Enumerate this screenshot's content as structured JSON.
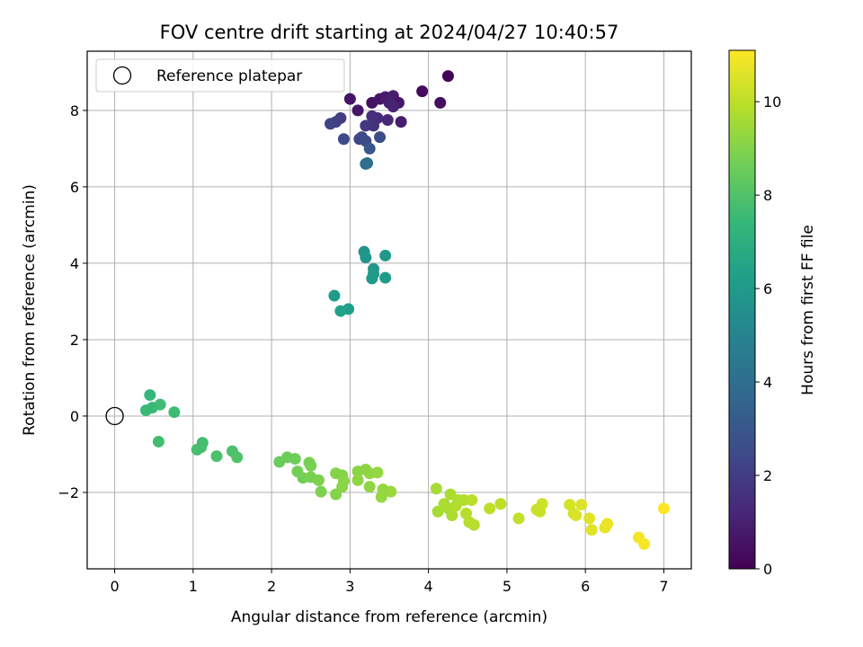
{
  "chart_data": {
    "type": "scatter",
    "title": "FOV centre drift starting at 2024/04/27 10:40:57",
    "xlabel": "Angular distance from reference (arcmin)",
    "ylabel": "Rotation from reference (arcmin)",
    "xlim": [
      -0.35,
      7.35
    ],
    "ylim": [
      -4.0,
      9.55
    ],
    "xticks": [
      0,
      1,
      2,
      3,
      4,
      5,
      6,
      7
    ],
    "yticks": [
      -2,
      0,
      2,
      4,
      6,
      8
    ],
    "xtick_labels": [
      "0",
      "1",
      "2",
      "3",
      "4",
      "5",
      "6",
      "7"
    ],
    "ytick_labels": [
      "−2",
      "0",
      "2",
      "4",
      "6",
      "8"
    ],
    "grid": true,
    "legend": {
      "placement": "top-left",
      "entries": [
        "Reference platepar"
      ]
    },
    "reference_point": {
      "x": 0,
      "y": 0
    },
    "colorbar": {
      "label": "Hours from first FF file",
      "min": 0,
      "max": 11.1,
      "ticks": [
        0,
        2,
        4,
        6,
        8,
        10
      ],
      "tick_labels": [
        "0",
        "2",
        "4",
        "6",
        "8",
        "10"
      ],
      "colormap": "viridis"
    },
    "points": [
      [
        4.25,
        8.9,
        0.1
      ],
      [
        3.92,
        8.5,
        0.3
      ],
      [
        4.15,
        8.2,
        0.4
      ],
      [
        3.0,
        8.3,
        0.6
      ],
      [
        3.1,
        8.0,
        0.7
      ],
      [
        3.28,
        8.2,
        0.5
      ],
      [
        3.38,
        8.3,
        0.6
      ],
      [
        3.45,
        8.35,
        0.8
      ],
      [
        3.55,
        8.38,
        0.9
      ],
      [
        3.62,
        8.2,
        0.7
      ],
      [
        3.5,
        8.2,
        1.0
      ],
      [
        3.55,
        8.1,
        1.1
      ],
      [
        3.65,
        7.7,
        0.9
      ],
      [
        3.48,
        7.75,
        1.2
      ],
      [
        3.35,
        7.8,
        1.3
      ],
      [
        3.28,
        7.85,
        1.5
      ],
      [
        3.3,
        7.6,
        1.6
      ],
      [
        3.2,
        7.6,
        1.8
      ],
      [
        2.88,
        7.8,
        2.0
      ],
      [
        2.82,
        7.7,
        2.1
      ],
      [
        2.75,
        7.65,
        2.2
      ],
      [
        3.12,
        7.25,
        2.3
      ],
      [
        3.15,
        7.3,
        2.4
      ],
      [
        3.2,
        7.2,
        2.5
      ],
      [
        3.38,
        7.3,
        2.6
      ],
      [
        2.92,
        7.25,
        2.5
      ],
      [
        3.25,
        7.0,
        3.0
      ],
      [
        3.2,
        6.6,
        3.8
      ],
      [
        3.22,
        6.62,
        4.0
      ],
      [
        3.18,
        4.3,
        5.7
      ],
      [
        3.2,
        4.15,
        5.8
      ],
      [
        3.45,
        4.2,
        5.9
      ],
      [
        3.3,
        3.85,
        5.8
      ],
      [
        3.3,
        3.72,
        6.0
      ],
      [
        3.28,
        3.6,
        6.0
      ],
      [
        3.45,
        3.62,
        6.1
      ],
      [
        2.8,
        3.15,
        6.1
      ],
      [
        2.98,
        2.8,
        6.2
      ],
      [
        2.88,
        2.75,
        6.3
      ],
      [
        0.45,
        0.55,
        7.4
      ],
      [
        0.4,
        0.15,
        7.5
      ],
      [
        0.48,
        0.22,
        7.5
      ],
      [
        0.58,
        0.3,
        7.6
      ],
      [
        0.76,
        0.1,
        7.6
      ],
      [
        0.56,
        -0.67,
        7.7
      ],
      [
        1.12,
        -0.7,
        7.7
      ],
      [
        1.05,
        -0.88,
        7.8
      ],
      [
        1.1,
        -0.82,
        7.8
      ],
      [
        1.3,
        -1.05,
        7.9
      ],
      [
        1.5,
        -0.92,
        7.9
      ],
      [
        1.56,
        -1.08,
        8.0
      ],
      [
        2.1,
        -1.2,
        8.5
      ],
      [
        2.2,
        -1.08,
        8.6
      ],
      [
        2.3,
        -1.12,
        8.6
      ],
      [
        2.33,
        -1.45,
        8.7
      ],
      [
        2.4,
        -1.62,
        8.7
      ],
      [
        2.48,
        -1.22,
        8.8
      ],
      [
        2.5,
        -1.3,
        8.8
      ],
      [
        2.5,
        -1.6,
        8.8
      ],
      [
        2.6,
        -1.68,
        8.9
      ],
      [
        2.63,
        -1.98,
        8.9
      ],
      [
        2.82,
        -1.5,
        9.0
      ],
      [
        2.82,
        -2.05,
        9.0
      ],
      [
        2.9,
        -1.55,
        9.0
      ],
      [
        2.92,
        -1.7,
        9.1
      ],
      [
        2.9,
        -1.85,
        9.1
      ],
      [
        3.1,
        -1.45,
        9.1
      ],
      [
        3.1,
        -1.68,
        9.2
      ],
      [
        3.2,
        -1.4,
        9.2
      ],
      [
        3.25,
        -1.5,
        9.2
      ],
      [
        3.25,
        -1.85,
        9.2
      ],
      [
        3.35,
        -1.48,
        9.3
      ],
      [
        3.4,
        -2.12,
        9.3
      ],
      [
        3.42,
        -1.92,
        9.3
      ],
      [
        3.52,
        -1.98,
        9.4
      ],
      [
        4.1,
        -1.9,
        9.6
      ],
      [
        4.12,
        -2.5,
        9.6
      ],
      [
        4.2,
        -2.3,
        9.7
      ],
      [
        4.25,
        -2.42,
        9.7
      ],
      [
        4.28,
        -2.05,
        9.7
      ],
      [
        4.3,
        -2.6,
        9.7
      ],
      [
        4.35,
        -2.35,
        9.8
      ],
      [
        4.38,
        -2.2,
        9.8
      ],
      [
        4.45,
        -2.2,
        9.8
      ],
      [
        4.48,
        -2.55,
        9.9
      ],
      [
        4.52,
        -2.78,
        9.9
      ],
      [
        4.55,
        -2.2,
        9.9
      ],
      [
        4.58,
        -2.85,
        9.9
      ],
      [
        4.78,
        -2.42,
        10.0
      ],
      [
        4.92,
        -2.3,
        10.0
      ],
      [
        5.15,
        -2.68,
        10.1
      ],
      [
        5.38,
        -2.45,
        10.2
      ],
      [
        5.42,
        -2.5,
        10.2
      ],
      [
        5.45,
        -2.3,
        10.3
      ],
      [
        5.8,
        -2.32,
        10.4
      ],
      [
        5.85,
        -2.55,
        10.4
      ],
      [
        5.88,
        -2.6,
        10.5
      ],
      [
        5.95,
        -2.32,
        10.5
      ],
      [
        6.05,
        -2.68,
        10.6
      ],
      [
        6.08,
        -2.98,
        10.6
      ],
      [
        6.25,
        -2.92,
        10.7
      ],
      [
        6.28,
        -2.82,
        10.8
      ],
      [
        6.68,
        -3.18,
        10.9
      ],
      [
        6.75,
        -3.35,
        11.0
      ],
      [
        7.0,
        -2.42,
        11.1
      ]
    ]
  }
}
